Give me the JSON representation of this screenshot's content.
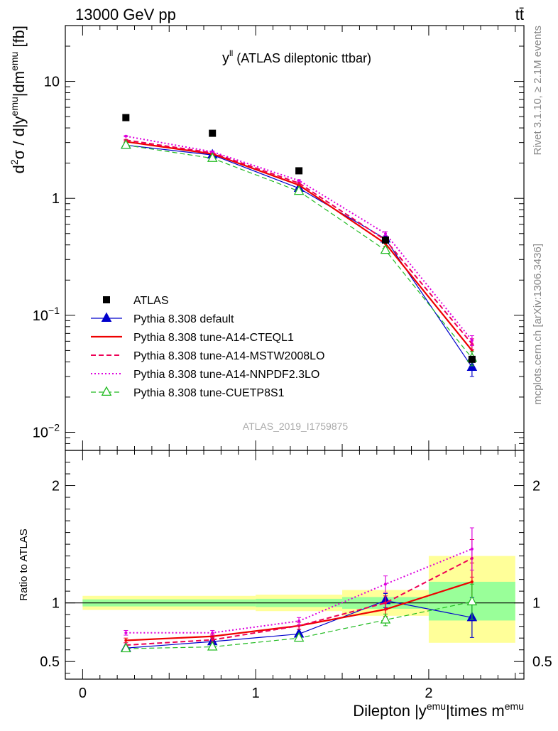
{
  "header": {
    "left": "13000 GeV pp",
    "right": "tt̄",
    "side_top": "Rivet 3.1.10, ≥ 2.1M events",
    "side_bottom": "mcplots.cern.ch [arXiv:1306.3436]"
  },
  "chart_data": [
    {
      "type": "line",
      "title_main": "y",
      "title_sup": "ll",
      "title_rest": " (ATLAS dileptonic ttbar)",
      "watermark": "ATLAS_2019_I1759875",
      "ylabel_parts": [
        {
          "t": "d",
          "s": 0
        },
        {
          "t": "2",
          "s": 1
        },
        {
          "t": "σ / d|y",
          "s": 0
        },
        {
          "t": "emu",
          "s": 1
        },
        {
          "t": "|dm",
          "s": 0
        },
        {
          "t": "emu",
          "s": 1
        },
        {
          "t": " [fb]",
          "s": 0
        }
      ],
      "yscale": "log",
      "xlim": [
        -0.1,
        2.55
      ],
      "ylim": [
        0.007,
        30
      ],
      "ytick_labels": [
        {
          "v": 10,
          "text": "10"
        },
        {
          "v": 1,
          "text": "1"
        },
        {
          "v": 0.1,
          "base": "10",
          "exp": "−1"
        },
        {
          "v": 0.01,
          "base": "10",
          "exp": "−2"
        }
      ],
      "x": [
        0.25,
        0.75,
        1.25,
        1.75,
        2.25
      ],
      "data": {
        "name": "ATLAS",
        "values": [
          4.9,
          3.6,
          1.72,
          0.44,
          0.042
        ]
      },
      "series": [
        {
          "name": "Pythia 8.308 default",
          "color": "#0000cc",
          "style": "solid",
          "marker": "triangle-filled",
          "width": 1.2,
          "values": [
            2.85,
            2.35,
            1.22,
            0.45,
            0.036
          ],
          "err": [
            0.04,
            0.03,
            0.02,
            0.02,
            0.006
          ]
        },
        {
          "name": "Pythia 8.308 tune-A14-CTEQL1",
          "color": "#ee0000",
          "style": "solid",
          "marker": "none",
          "width": 2.2,
          "values": [
            3.05,
            2.4,
            1.3,
            0.41,
            0.05
          ],
          "err": [
            0.04,
            0.03,
            0.02,
            0.02,
            0.006
          ]
        },
        {
          "name": "Pythia 8.308 tune-A14-MSTW2008LO",
          "color": "#ee0055",
          "style": "dashed",
          "marker": "none",
          "width": 2.0,
          "values": [
            3.15,
            2.45,
            1.35,
            0.44,
            0.057
          ],
          "err": [
            0.04,
            0.03,
            0.02,
            0.02,
            0.006
          ]
        },
        {
          "name": "Pythia 8.308 tune-A14-NNPDF2.3LO",
          "color": "#dd00dd",
          "style": "dotted",
          "marker": "none",
          "width": 2.0,
          "values": [
            3.4,
            2.5,
            1.42,
            0.5,
            0.061
          ],
          "err": [
            0.04,
            0.03,
            0.02,
            0.02,
            0.006
          ]
        },
        {
          "name": "Pythia 8.308 tune-CUETP8S1",
          "color": "#22bb22",
          "style": "dashed",
          "marker": "triangle-open",
          "width": 1.2,
          "values": [
            2.85,
            2.2,
            1.15,
            0.36,
            0.043
          ],
          "err": [
            0.04,
            0.03,
            0.02,
            0.02,
            0.006
          ]
        }
      ]
    },
    {
      "type": "line",
      "ylabel": "Ratio to ATLAS",
      "xlabel_parts": [
        {
          "t": "Dilepton |y",
          "s": 0
        },
        {
          "t": "emu",
          "s": 1
        },
        {
          "t": "|times m",
          "s": 0
        },
        {
          "t": "emu",
          "s": 1
        }
      ],
      "xlim": [
        -0.1,
        2.55
      ],
      "ylim": [
        0.35,
        2.3
      ],
      "xticks": [
        0,
        1,
        2
      ],
      "xtick_labels": [
        "0",
        "1",
        "2"
      ],
      "yticks": [
        0.5,
        1,
        2
      ],
      "ytick_labels": [
        "0.5",
        "1",
        "2"
      ],
      "bands": [
        {
          "x0": 0.0,
          "x1": 1.0,
          "inner": [
            0.97,
            1.03
          ],
          "outer": [
            0.94,
            1.06
          ]
        },
        {
          "x0": 1.0,
          "x1": 1.5,
          "inner": [
            0.965,
            1.035
          ],
          "outer": [
            0.93,
            1.07
          ]
        },
        {
          "x0": 1.5,
          "x1": 2.0,
          "inner": [
            0.95,
            1.05
          ],
          "outer": [
            0.89,
            1.11
          ]
        },
        {
          "x0": 2.0,
          "x1": 2.5,
          "inner": [
            0.85,
            1.18
          ],
          "outer": [
            0.66,
            1.4
          ]
        }
      ],
      "x": [
        0.25,
        0.75,
        1.25,
        1.75,
        2.25
      ],
      "series": [
        {
          "name": "Pythia 8.308 default",
          "color": "#0000cc",
          "style": "solid",
          "marker": "triangle-filled",
          "width": 1.2,
          "values": [
            0.615,
            0.67,
            0.735,
            1.02,
            0.875
          ],
          "err": [
            0.01,
            0.01,
            0.02,
            0.06,
            0.17
          ]
        },
        {
          "name": "Pythia 8.308 tune-A14-CTEQL1",
          "color": "#ee0000",
          "style": "solid",
          "marker": "none",
          "width": 2.2,
          "values": [
            0.68,
            0.715,
            0.805,
            0.945,
            1.18
          ],
          "err": [
            0.02,
            0.02,
            0.03,
            0.06,
            0.16
          ]
        },
        {
          "name": "Pythia 8.308 tune-A14-MSTW2008LO",
          "color": "#ee0055",
          "style": "dashed",
          "marker": "none",
          "width": 2.0,
          "values": [
            0.64,
            0.685,
            0.805,
            1.0,
            1.38
          ],
          "err": [
            0.02,
            0.02,
            0.03,
            0.06,
            0.16
          ]
        },
        {
          "name": "Pythia 8.308 tune-A14-NNPDF2.3LO",
          "color": "#dd00dd",
          "style": "dotted",
          "marker": "none",
          "width": 2.0,
          "values": [
            0.745,
            0.745,
            0.845,
            1.16,
            1.46
          ],
          "err": [
            0.02,
            0.02,
            0.03,
            0.07,
            0.18
          ]
        },
        {
          "name": "Pythia 8.308 tune-CUETP8S1",
          "color": "#22bb22",
          "style": "dashed",
          "marker": "triangle-open",
          "width": 1.2,
          "values": [
            0.61,
            0.625,
            0.7,
            0.855,
            1.01
          ],
          "err": [
            0.01,
            0.01,
            0.02,
            0.05,
            0.15
          ]
        }
      ]
    }
  ]
}
